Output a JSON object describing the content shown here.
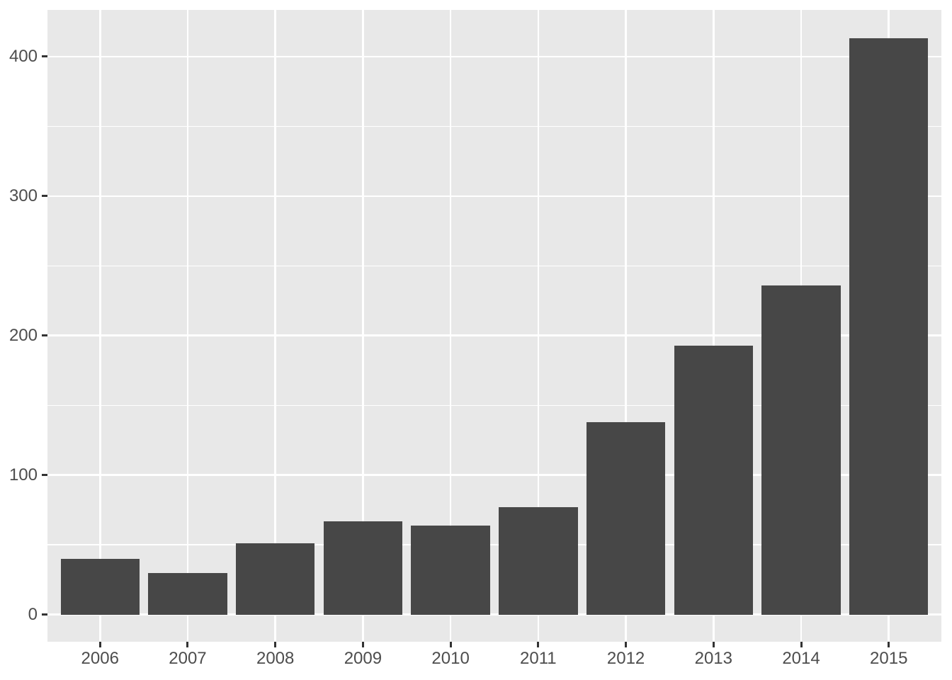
{
  "chart_data": {
    "type": "bar",
    "title": "",
    "xlabel": "",
    "ylabel": "",
    "categories": [
      "2006",
      "2007",
      "2008",
      "2009",
      "2010",
      "2011",
      "2012",
      "2013",
      "2014",
      "2015"
    ],
    "values": [
      40,
      30,
      51,
      67,
      64,
      77,
      138,
      193,
      236,
      413
    ],
    "ylim": [
      -19.5,
      433.5
    ],
    "y_major_ticks": [
      0,
      100,
      200,
      300,
      400
    ],
    "y_major_tick_labels": [
      "0",
      "100",
      "200",
      "300",
      "400"
    ],
    "y_minor_ticks": [
      50,
      150,
      250,
      350
    ],
    "grid": "on",
    "legend": "none",
    "style": "ggplot2-grey-theme",
    "colors": {
      "bar_fill": "#474747",
      "panel_bg": "#E8E8E8",
      "grid_major": "#FFFFFF",
      "grid_minor": "#FFFFFF",
      "axis_text": "#4D4D4D",
      "tick_mark": "#333333",
      "outer_bg": "#FFFFFF"
    }
  }
}
